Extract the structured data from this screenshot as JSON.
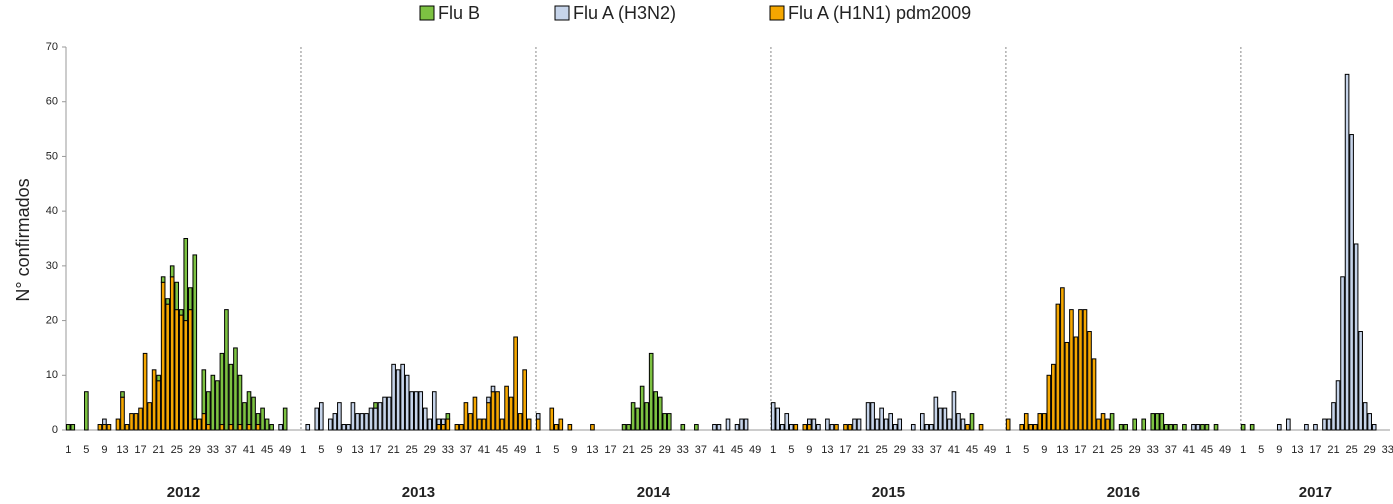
{
  "chart_data": {
    "type": "bar",
    "stacked": true,
    "y_label": "N° confirmados",
    "years": [
      "2012",
      "2013",
      "2014",
      "2015",
      "2016",
      "2017"
    ],
    "categories": [
      "1",
      null,
      null,
      null,
      "5",
      null,
      null,
      null,
      "9",
      null,
      null,
      null,
      "13",
      null,
      null,
      null,
      "17",
      null,
      null,
      null,
      "21",
      null,
      null,
      null,
      "25",
      null,
      null,
      null,
      "29",
      null,
      null,
      null,
      "33",
      null,
      null,
      null,
      "37",
      null,
      null,
      null,
      "41",
      null,
      null,
      null,
      "45",
      null,
      null,
      null,
      "49",
      null,
      null,
      null,
      "1",
      null,
      null,
      null,
      "5",
      null,
      null,
      null,
      "9",
      null,
      null,
      null,
      "13",
      null,
      null,
      null,
      "17",
      null,
      null,
      null,
      "21",
      null,
      null,
      null,
      "25",
      null,
      null,
      null,
      "29",
      null,
      null,
      null,
      "33",
      null,
      null,
      null,
      "37",
      null,
      null,
      null,
      "41",
      null,
      null,
      null,
      "45",
      null,
      null,
      null,
      "49",
      null,
      null,
      null,
      "1",
      null,
      null,
      null,
      "5",
      null,
      null,
      null,
      "9",
      null,
      null,
      null,
      "13",
      null,
      null,
      null,
      "17",
      null,
      null,
      null,
      "21",
      null,
      null,
      null,
      "25",
      null,
      null,
      null,
      "29",
      null,
      null,
      null,
      "33",
      null,
      null,
      null,
      "37",
      null,
      null,
      null,
      "41",
      null,
      null,
      null,
      "45",
      null,
      null,
      null,
      "49",
      null,
      null,
      null,
      "1",
      null,
      null,
      null,
      "5",
      null,
      null,
      null,
      "9",
      null,
      null,
      null,
      "13",
      null,
      null,
      null,
      "17",
      null,
      null,
      null,
      "21",
      null,
      null,
      null,
      "25",
      null,
      null,
      null,
      "29",
      null,
      null,
      null,
      "33",
      null,
      null,
      null,
      "37",
      null,
      null,
      null,
      "41",
      null,
      null,
      null,
      "45",
      null,
      null,
      null,
      "49",
      null,
      null,
      null,
      "1",
      null,
      null,
      null,
      "5",
      null,
      null,
      null,
      "9",
      null,
      null,
      null,
      "13",
      null,
      null,
      null,
      "17",
      null,
      null,
      null,
      "21",
      null,
      null,
      null,
      "25",
      null,
      null,
      null,
      "29",
      null,
      null,
      null,
      "33",
      null,
      null,
      null,
      "37",
      null,
      null,
      null,
      "41",
      null,
      null,
      null,
      "45",
      null,
      null,
      null,
      "49",
      null,
      null,
      null,
      "1",
      null,
      null,
      null,
      "5",
      null,
      null,
      null,
      "9",
      null,
      null,
      null,
      "13",
      null,
      null,
      null,
      "17",
      null,
      null,
      null,
      "21",
      null,
      null,
      null,
      "25",
      null,
      null,
      null,
      "29",
      null,
      null,
      null,
      "33"
    ],
    "series": [
      {
        "name": "Flu B",
        "color": "#7dc242",
        "values": [
          1,
          1,
          0,
          0,
          7,
          0,
          0,
          0,
          0,
          0,
          0,
          0,
          1,
          0,
          0,
          0,
          0,
          0,
          0,
          0,
          1,
          1,
          1,
          2,
          5,
          1,
          15,
          4,
          30,
          0,
          8,
          6,
          10,
          9,
          13,
          22,
          11,
          15,
          9,
          5,
          6,
          6,
          2,
          4,
          2,
          1,
          0,
          0,
          4,
          0,
          0,
          0,
          0,
          0,
          0,
          0,
          0,
          0,
          0,
          0,
          0,
          0,
          0,
          0,
          0,
          0,
          0,
          0,
          1,
          0,
          0,
          0,
          0,
          0,
          0,
          0,
          0,
          0,
          0,
          0,
          0,
          0,
          0,
          0,
          1,
          0,
          0,
          0,
          0,
          0,
          0,
          0,
          0,
          0,
          0,
          0,
          0,
          0,
          0,
          0,
          0,
          0,
          0,
          0,
          0,
          0,
          0,
          0,
          0,
          0,
          0,
          0,
          0,
          0,
          0,
          0,
          0,
          0,
          0,
          0,
          0,
          0,
          0,
          1,
          1,
          5,
          4,
          8,
          5,
          14,
          7,
          6,
          3,
          3,
          0,
          0,
          1,
          0,
          0,
          1,
          0,
          0,
          0,
          0,
          0,
          0,
          0,
          0,
          0,
          0,
          0,
          0,
          0,
          0,
          0,
          0,
          0,
          0,
          0,
          0,
          0,
          0,
          0,
          0,
          0,
          0,
          0,
          0,
          0,
          0,
          0,
          0,
          0,
          0,
          0,
          0,
          0,
          0,
          0,
          0,
          0,
          0,
          0,
          0,
          0,
          0,
          0,
          0,
          0,
          0,
          0,
          0,
          0,
          0,
          0,
          0,
          0,
          0,
          0,
          0,
          3,
          0,
          0,
          0,
          0,
          0,
          0,
          0,
          0,
          0,
          0,
          0,
          0,
          0,
          0,
          0,
          0,
          0,
          0,
          0,
          0,
          0,
          0,
          0,
          0,
          0,
          0,
          0,
          0,
          0,
          0,
          3,
          0,
          1,
          1,
          0,
          2,
          0,
          2,
          0,
          3,
          3,
          3,
          1,
          1,
          1,
          0,
          1,
          0,
          0,
          0,
          1,
          1,
          0,
          1,
          0,
          0,
          0,
          0,
          0,
          1,
          0,
          1,
          0,
          0,
          0,
          0,
          0,
          0,
          0,
          0,
          0,
          0,
          0,
          0,
          0,
          0,
          0,
          0,
          0,
          0,
          0,
          0,
          0,
          0,
          0,
          0,
          0,
          0,
          0,
          0,
          0,
          0
        ]
      },
      {
        "name": "Flu A (H3N2)",
        "color": "#c6d4ea",
        "values": [
          0,
          0,
          0,
          0,
          0,
          0,
          0,
          0,
          1,
          0,
          0,
          0,
          0,
          0,
          0,
          0,
          0,
          0,
          0,
          0,
          0,
          0,
          0,
          0,
          0,
          0,
          0,
          0,
          0,
          0,
          0,
          0,
          0,
          0,
          0,
          0,
          0,
          0,
          0,
          0,
          0,
          0,
          0,
          0,
          0,
          0,
          0,
          1,
          0,
          0,
          0,
          0,
          0,
          1,
          0,
          4,
          5,
          0,
          2,
          3,
          5,
          1,
          1,
          5,
          3,
          3,
          3,
          4,
          4,
          5,
          6,
          6,
          12,
          11,
          12,
          10,
          7,
          7,
          7,
          4,
          2,
          7,
          1,
          1,
          0,
          0,
          0,
          0,
          0,
          0,
          0,
          0,
          0,
          1,
          1,
          0,
          0,
          0,
          0,
          0,
          0,
          0,
          0,
          0,
          1,
          0,
          0,
          0,
          0,
          0,
          0,
          0,
          0,
          0,
          0,
          0,
          0,
          0,
          0,
          0,
          0,
          0,
          0,
          0,
          0,
          0,
          0,
          0,
          0,
          0,
          0,
          0,
          0,
          0,
          0,
          0,
          0,
          0,
          0,
          0,
          0,
          0,
          0,
          1,
          1,
          0,
          2,
          0,
          1,
          2,
          2,
          0,
          0,
          0,
          0,
          0,
          5,
          4,
          1,
          3,
          1,
          0,
          0,
          0,
          1,
          2,
          1,
          0,
          2,
          1,
          0,
          0,
          0,
          0,
          2,
          2,
          0,
          5,
          5,
          2,
          4,
          2,
          3,
          1,
          2,
          0,
          0,
          1,
          0,
          3,
          1,
          1,
          6,
          4,
          4,
          2,
          7,
          3,
          2,
          0,
          0,
          0,
          0,
          0,
          0,
          0,
          0,
          0,
          0,
          0,
          0,
          0,
          0,
          0,
          0,
          0,
          0,
          0,
          0,
          0,
          0,
          0,
          0,
          0,
          0,
          0,
          0,
          0,
          0,
          0,
          0,
          0,
          0,
          0,
          0,
          0,
          0,
          0,
          0,
          0,
          0,
          0,
          0,
          0,
          0,
          0,
          0,
          0,
          0,
          1,
          1,
          0,
          0,
          0,
          0,
          0,
          0,
          0,
          0,
          0,
          0,
          0,
          0,
          0,
          0,
          0,
          0,
          0,
          1,
          0,
          2,
          0,
          0,
          0,
          1,
          0,
          1,
          0,
          2,
          2,
          5,
          9,
          28,
          65,
          54,
          34,
          18,
          5,
          3,
          1,
          0,
          0,
          0
        ]
      },
      {
        "name": "Flu A (H1N1) pdm2009",
        "color": "#f5a700",
        "values": [
          0,
          0,
          0,
          0,
          0,
          0,
          0,
          1,
          1,
          1,
          0,
          2,
          6,
          1,
          3,
          3,
          4,
          14,
          5,
          11,
          9,
          27,
          23,
          28,
          22,
          21,
          20,
          22,
          2,
          2,
          3,
          1,
          0,
          0,
          1,
          0,
          1,
          0,
          1,
          0,
          1,
          0,
          1,
          0,
          0,
          0,
          0,
          0,
          0,
          0,
          0,
          0,
          0,
          0,
          0,
          0,
          0,
          0,
          0,
          0,
          0,
          0,
          0,
          0,
          0,
          0,
          0,
          0,
          0,
          0,
          0,
          0,
          0,
          0,
          0,
          0,
          0,
          0,
          0,
          0,
          0,
          0,
          1,
          1,
          2,
          0,
          1,
          1,
          5,
          3,
          6,
          2,
          2,
          5,
          7,
          7,
          2,
          8,
          6,
          17,
          3,
          11,
          2,
          0,
          2,
          0,
          0,
          4,
          1,
          2,
          0,
          1,
          0,
          0,
          0,
          0,
          1,
          0,
          0,
          0,
          0,
          0,
          0,
          0,
          0,
          0,
          0,
          0,
          0,
          0,
          0,
          0,
          0,
          0,
          0,
          0,
          0,
          0,
          0,
          0,
          0,
          0,
          0,
          0,
          0,
          0,
          0,
          0,
          0,
          0,
          0,
          0,
          0,
          0,
          0,
          0,
          0,
          0,
          0,
          0,
          0,
          1,
          0,
          1,
          1,
          0,
          0,
          0,
          0,
          0,
          1,
          0,
          1,
          1,
          0,
          0,
          0,
          0,
          0,
          0,
          0,
          0,
          0,
          0,
          0,
          0,
          0,
          0,
          0,
          0,
          0,
          0,
          0,
          0,
          0,
          0,
          0,
          0,
          0,
          1,
          0,
          0,
          1,
          0,
          0,
          0,
          0,
          0,
          2,
          0,
          0,
          1,
          3,
          1,
          1,
          3,
          3,
          10,
          12,
          23,
          26,
          16,
          22,
          17,
          22,
          22,
          18,
          13,
          2,
          3,
          2,
          0,
          0,
          0,
          0,
          0,
          0,
          0,
          0,
          0,
          0,
          0,
          0,
          0,
          0,
          0,
          0,
          0,
          0,
          0,
          0,
          0,
          0,
          0,
          0,
          0,
          0,
          0,
          0,
          0,
          0,
          0,
          0,
          0,
          0,
          0,
          0,
          0,
          0,
          0,
          0,
          0,
          0,
          0,
          0,
          0,
          0,
          0,
          0,
          0,
          0,
          0,
          0,
          0,
          0,
          0,
          0,
          0,
          0,
          0,
          0,
          0,
          0
        ]
      }
    ],
    "ylim": [
      0,
      70
    ],
    "yticks": [
      0,
      10,
      20,
      30,
      40,
      50,
      60,
      70
    ],
    "grid": false,
    "legend": "top"
  }
}
